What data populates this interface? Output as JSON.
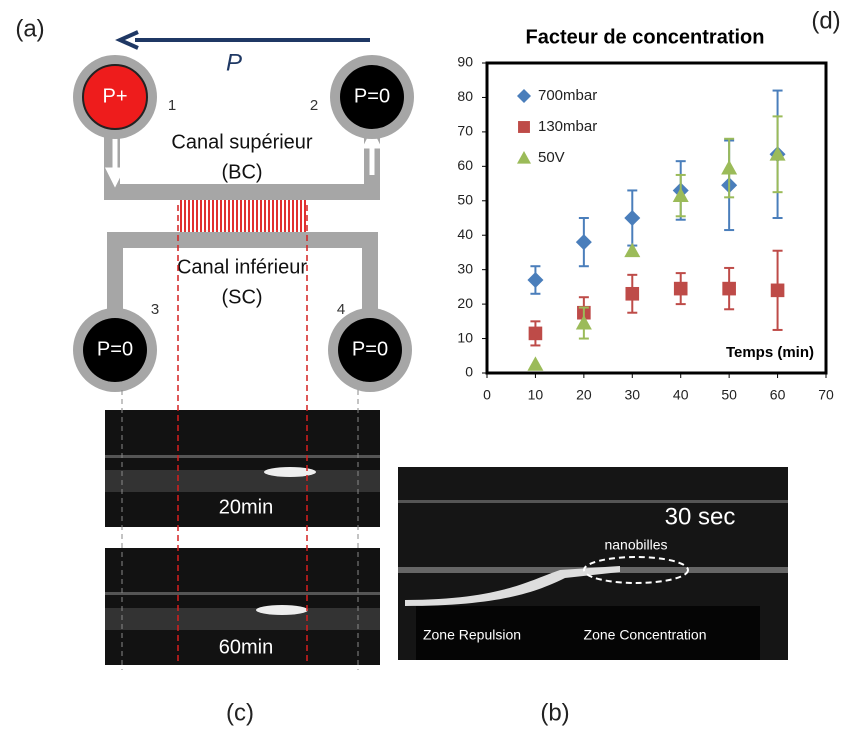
{
  "panels": {
    "a": "(a)",
    "b": "(b)",
    "c": "(c)",
    "d": "(d)"
  },
  "diagram": {
    "pressure": "P",
    "ports": [
      "P+",
      "P=0",
      "P=0",
      "P=0"
    ],
    "port_numbers": [
      "1",
      "2",
      "3",
      "4"
    ],
    "upper_channel": [
      "Canal supérieur",
      "(BC)"
    ],
    "lower_channel": [
      "Canal inférieur",
      "(SC)"
    ]
  },
  "images": {
    "c_top": "20min",
    "c_bottom": "60min",
    "b_time": "30 sec",
    "b_beads": "nanobilles",
    "b_zone_left": "Zone Repulsion",
    "b_zone_right": "Zone Concentration"
  },
  "chart_data": {
    "type": "scatter",
    "title": "Facteur de concentration",
    "x_label": "Temps (min)",
    "x": [
      10,
      20,
      30,
      40,
      50,
      60
    ],
    "series": [
      {
        "name": "700mbar",
        "color": "#4a7ebb",
        "marker": "diamond",
        "values": [
          27,
          38,
          45,
          53,
          54.5,
          63.5
        ],
        "errors": [
          4,
          7,
          8,
          8.5,
          13,
          18.5
        ]
      },
      {
        "name": "130mbar",
        "color": "#be4b48",
        "marker": "square",
        "values": [
          11.5,
          17.5,
          23,
          24.5,
          24.5,
          24
        ],
        "errors": [
          3.5,
          4.5,
          5.5,
          4.5,
          6,
          11.5
        ]
      },
      {
        "name": "50V",
        "color": "#9bbb59",
        "marker": "triangle",
        "values": [
          2.5,
          14.5,
          35.5,
          51.5,
          59.5,
          63.5
        ],
        "errors": [
          0,
          4.5,
          0,
          6,
          8.5,
          11
        ]
      }
    ],
    "xlim": [
      0,
      70
    ],
    "ylim": [
      0,
      90
    ],
    "xticks": [
      0,
      10,
      20,
      30,
      40,
      50,
      60,
      70
    ],
    "yticks": [
      0,
      10,
      20,
      30,
      40,
      50,
      60,
      70,
      80,
      90
    ],
    "legend": "upper-left"
  }
}
